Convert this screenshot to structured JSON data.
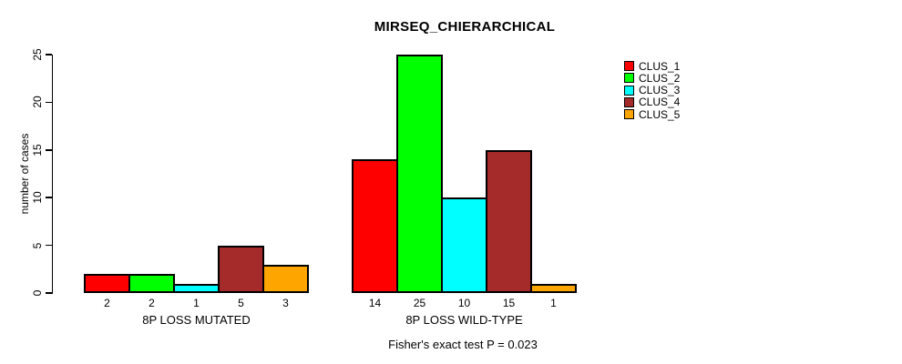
{
  "chart_data": {
    "type": "bar",
    "title": "MIRSEQ_CHIERARCHICAL",
    "ylabel": "number of cases",
    "xlabel": "",
    "ylim": [
      0,
      25
    ],
    "yticks": [
      0,
      5,
      10,
      15,
      20,
      25
    ],
    "grid": false,
    "legend_position": "right-outside",
    "groups": [
      {
        "label": "8P LOSS MUTATED",
        "values": [
          2,
          2,
          1,
          5,
          3
        ],
        "value_labels": [
          "2",
          "2",
          "1",
          "5",
          "3"
        ]
      },
      {
        "label": "8P LOSS WILD-TYPE",
        "values": [
          14,
          25,
          10,
          15,
          1
        ],
        "value_labels": [
          "14",
          "25",
          "10",
          "15",
          "1"
        ]
      }
    ],
    "series": [
      {
        "name": "CLUS_1",
        "color": "#FF0000",
        "values": [
          2,
          14
        ]
      },
      {
        "name": "CLUS_2",
        "color": "#00FF00",
        "values": [
          2,
          25
        ]
      },
      {
        "name": "CLUS_3",
        "color": "#00FFFF",
        "values": [
          1,
          10
        ]
      },
      {
        "name": "CLUS_4",
        "color": "#A52A2A",
        "values": [
          5,
          15
        ]
      },
      {
        "name": "CLUS_5",
        "color": "#FFA500",
        "values": [
          3,
          1
        ]
      }
    ],
    "footnote": "Fisher's exact test P = 0.023"
  },
  "colors": {
    "background": "#FFFFFF",
    "axis": "#000000",
    "text": "#000000"
  }
}
